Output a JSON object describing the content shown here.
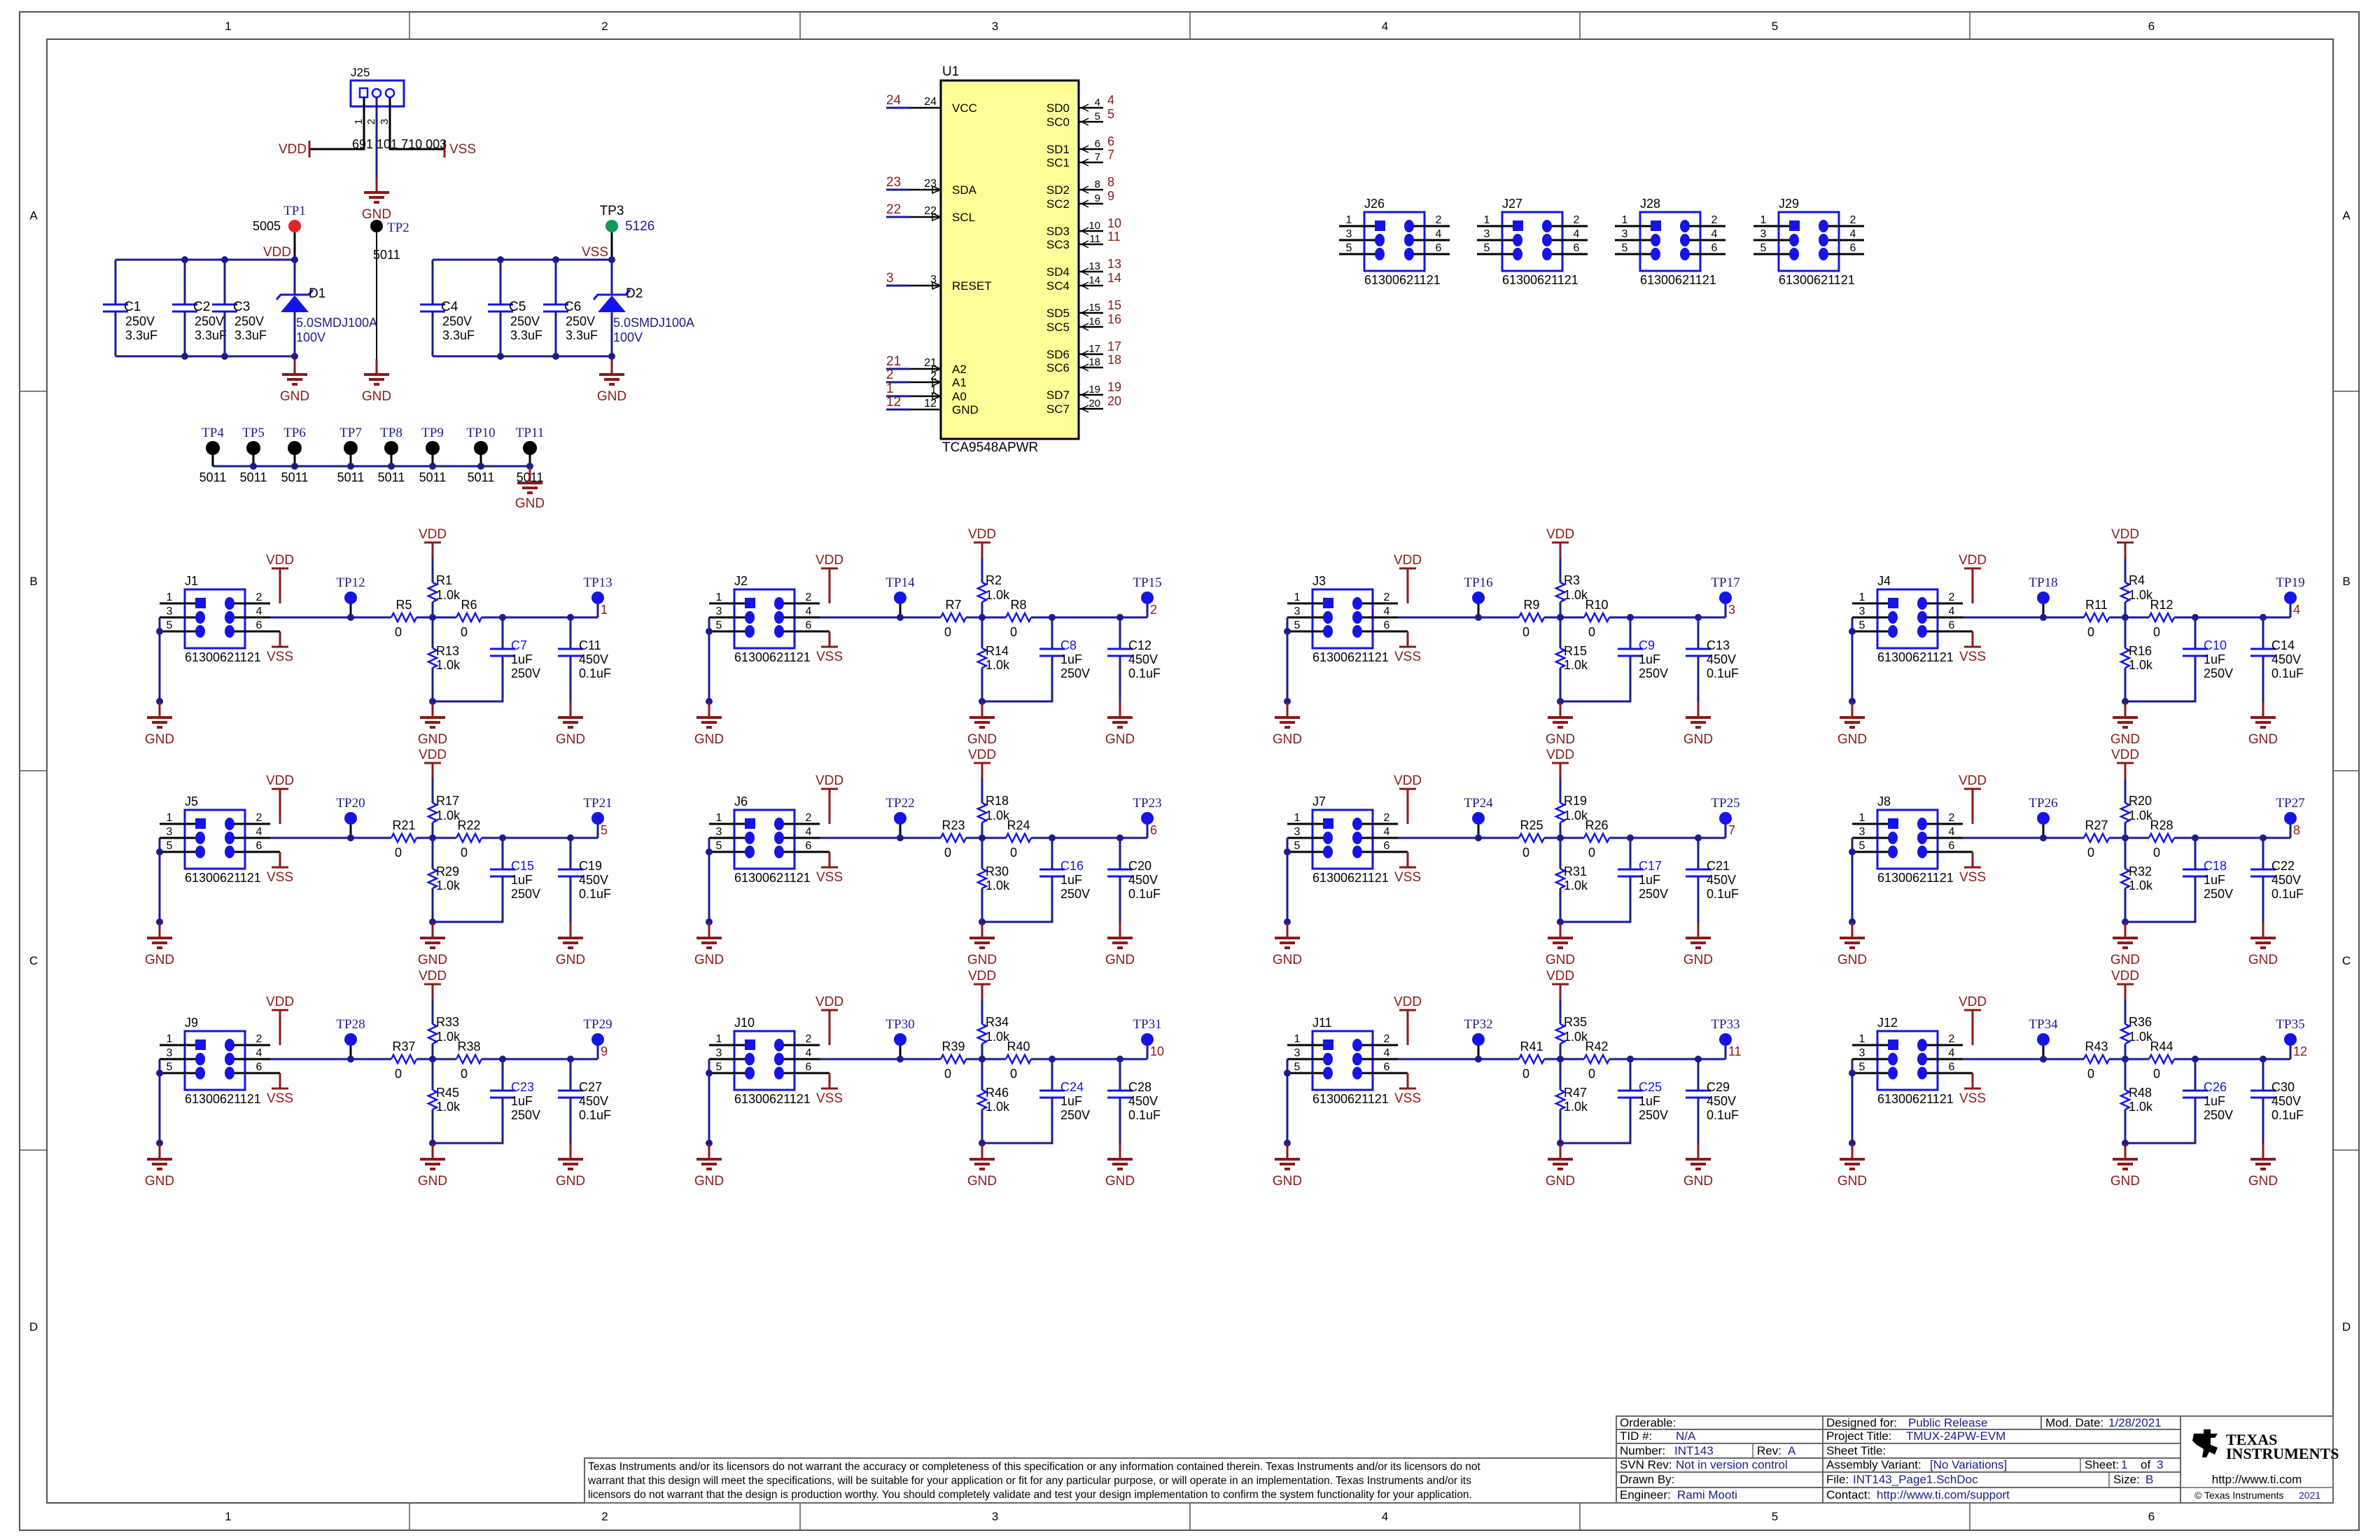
{
  "frame": {
    "columns": [
      "1",
      "2",
      "3",
      "4",
      "5",
      "6"
    ],
    "rows": [
      "A",
      "B",
      "C",
      "D"
    ]
  },
  "colors": {
    "wire": "#1c1c8c",
    "component": "#1414e6",
    "power": "#8b1a1a",
    "ic_fill": "#ffff99",
    "tp_red": "#e8222a",
    "tp_green": "#0f9a5a",
    "tp_black": "#000000"
  },
  "power_section": {
    "j25": {
      "ref": "J25",
      "part": "691 101 710 003",
      "pins": [
        "1",
        "2",
        "3"
      ]
    },
    "vdd": "VDD",
    "vss": "VSS",
    "gnd": "GND",
    "tp1": {
      "ref": "TP1",
      "part": "5005"
    },
    "tp2": {
      "ref": "TP2",
      "part": "5011"
    },
    "tp3": {
      "ref": "TP3",
      "part": "5126"
    },
    "caps": [
      {
        "ref": "C1",
        "voltage": "250V",
        "value": "3.3uF"
      },
      {
        "ref": "C2",
        "voltage": "250V",
        "value": "3.3uF"
      },
      {
        "ref": "C3",
        "voltage": "250V",
        "value": "3.3uF"
      },
      {
        "ref": "C4",
        "voltage": "250V",
        "value": "3.3uF"
      },
      {
        "ref": "C5",
        "voltage": "250V",
        "value": "3.3uF"
      },
      {
        "ref": "C6",
        "voltage": "250V",
        "value": "3.3uF"
      }
    ],
    "d1": {
      "ref": "D1",
      "part": "5.0SMDJ100A",
      "voltage": "100V"
    },
    "d2": {
      "ref": "D2",
      "part": "5.0SMDJ100A",
      "voltage": "100V"
    }
  },
  "gnd_testpoints": {
    "refs": [
      "TP4",
      "TP5",
      "TP6",
      "TP7",
      "TP8",
      "TP9",
      "TP10",
      "TP11"
    ],
    "part": "5011",
    "gnd": "GND"
  },
  "u1": {
    "ref": "U1",
    "part": "TCA9548APWR",
    "left_pins": [
      {
        "name": "VCC",
        "num": "24",
        "net": "24"
      },
      {
        "name": "SDA",
        "num": "23",
        "net": "23"
      },
      {
        "name": "SCL",
        "num": "22",
        "net": "22"
      },
      {
        "name": "RESET",
        "num": "3",
        "net": "3"
      },
      {
        "name": "A2",
        "num": "21",
        "net": "21"
      },
      {
        "name": "A1",
        "num": "2",
        "net": "2"
      },
      {
        "name": "A0",
        "num": "1",
        "net": "1"
      },
      {
        "name": "GND",
        "num": "12",
        "net": "12"
      }
    ],
    "right_pins": [
      {
        "name": "SD0",
        "num": "4",
        "net": "4"
      },
      {
        "name": "SC0",
        "num": "5",
        "net": "5"
      },
      {
        "name": "SD1",
        "num": "6",
        "net": "6"
      },
      {
        "name": "SC1",
        "num": "7",
        "net": "7"
      },
      {
        "name": "SD2",
        "num": "8",
        "net": "8"
      },
      {
        "name": "SC2",
        "num": "9",
        "net": "9"
      },
      {
        "name": "SD3",
        "num": "10",
        "net": "10"
      },
      {
        "name": "SC3",
        "num": "11",
        "net": "11"
      },
      {
        "name": "SD4",
        "num": "13",
        "net": "13"
      },
      {
        "name": "SC4",
        "num": "14",
        "net": "14"
      },
      {
        "name": "SD5",
        "num": "15",
        "net": "15"
      },
      {
        "name": "SC5",
        "num": "16",
        "net": "16"
      },
      {
        "name": "SD6",
        "num": "17",
        "net": "17"
      },
      {
        "name": "SC6",
        "num": "18",
        "net": "18"
      },
      {
        "name": "SD7",
        "num": "19",
        "net": "19"
      },
      {
        "name": "SC7",
        "num": "20",
        "net": "20"
      }
    ]
  },
  "spare_headers": {
    "refs": [
      "J26",
      "J27",
      "J28",
      "J29"
    ],
    "part": "61300621121",
    "pins": [
      "1",
      "2",
      "3",
      "4",
      "5",
      "6"
    ]
  },
  "channel_common": {
    "header_part": "61300621121",
    "header_pins": [
      "1",
      "2",
      "3",
      "4",
      "5",
      "6"
    ],
    "vdd": "VDD",
    "vss": "VSS",
    "gnd": "GND",
    "r_divider_value": "1.0k",
    "r_series_value": "0",
    "c_small_value": "1uF",
    "c_small_voltage": "250V",
    "c_big_voltage": "450V",
    "c_big_value": "0.1uF"
  },
  "channels": [
    {
      "j": "J1",
      "tp_a": "TP12",
      "tp_b": "TP13",
      "r_top": "R1",
      "r_s1": "R5",
      "r_s2": "R6",
      "r_bot": "R13",
      "c_a": "C7",
      "c_b": "C11",
      "net": "1"
    },
    {
      "j": "J2",
      "tp_a": "TP14",
      "tp_b": "TP15",
      "r_top": "R2",
      "r_s1": "R7",
      "r_s2": "R8",
      "r_bot": "R14",
      "c_a": "C8",
      "c_b": "C12",
      "net": "2"
    },
    {
      "j": "J3",
      "tp_a": "TP16",
      "tp_b": "TP17",
      "r_top": "R3",
      "r_s1": "R9",
      "r_s2": "R10",
      "r_bot": "R15",
      "c_a": "C9",
      "c_b": "C13",
      "net": "3"
    },
    {
      "j": "J4",
      "tp_a": "TP18",
      "tp_b": "TP19",
      "r_top": "R4",
      "r_s1": "R11",
      "r_s2": "R12",
      "r_bot": "R16",
      "c_a": "C10",
      "c_b": "C14",
      "net": "4"
    },
    {
      "j": "J5",
      "tp_a": "TP20",
      "tp_b": "TP21",
      "r_top": "R17",
      "r_s1": "R21",
      "r_s2": "R22",
      "r_bot": "R29",
      "c_a": "C15",
      "c_b": "C19",
      "net": "5"
    },
    {
      "j": "J6",
      "tp_a": "TP22",
      "tp_b": "TP23",
      "r_top": "R18",
      "r_s1": "R23",
      "r_s2": "R24",
      "r_bot": "R30",
      "c_a": "C16",
      "c_b": "C20",
      "net": "6"
    },
    {
      "j": "J7",
      "tp_a": "TP24",
      "tp_b": "TP25",
      "r_top": "R19",
      "r_s1": "R25",
      "r_s2": "R26",
      "r_bot": "R31",
      "c_a": "C17",
      "c_b": "C21",
      "net": "7"
    },
    {
      "j": "J8",
      "tp_a": "TP26",
      "tp_b": "TP27",
      "r_top": "R20",
      "r_s1": "R27",
      "r_s2": "R28",
      "r_bot": "R32",
      "c_a": "C18",
      "c_b": "C22",
      "net": "8"
    },
    {
      "j": "J9",
      "tp_a": "TP28",
      "tp_b": "TP29",
      "r_top": "R33",
      "r_s1": "R37",
      "r_s2": "R38",
      "r_bot": "R45",
      "c_a": "C23",
      "c_b": "C27",
      "net": "9"
    },
    {
      "j": "J10",
      "tp_a": "TP30",
      "tp_b": "TP31",
      "r_top": "R34",
      "r_s1": "R39",
      "r_s2": "R40",
      "r_bot": "R46",
      "c_a": "C24",
      "c_b": "C28",
      "net": "10"
    },
    {
      "j": "J11",
      "tp_a": "TP32",
      "tp_b": "TP33",
      "r_top": "R35",
      "r_s1": "R41",
      "r_s2": "R42",
      "r_bot": "R47",
      "c_a": "C25",
      "c_b": "C29",
      "net": "11"
    },
    {
      "j": "J12",
      "tp_a": "TP34",
      "tp_b": "TP35",
      "r_top": "R36",
      "r_s1": "R43",
      "r_s2": "R44",
      "r_bot": "R48",
      "c_a": "C26",
      "c_b": "C30",
      "net": "12"
    }
  ],
  "title_block": {
    "orderable_label": "Orderable:",
    "tid_label": "TID #:",
    "tid": "N/A",
    "number_label": "Number:",
    "number": "INT143",
    "rev_label": "Rev:",
    "rev": "A",
    "svn_label": "SVN Rev:",
    "svn": "Not in version control",
    "drawn_label": "Drawn By:",
    "engineer_label": "Engineer:",
    "engineer": "Rami Mooti",
    "designed_label": "Designed for:",
    "designed": "Public Release",
    "mod_date_label": "Mod. Date:",
    "mod_date": "1/28/2021",
    "project_label": "Project Title:",
    "project": "TMUX-24PW-EVM",
    "sheet_title_label": "Sheet Title:",
    "variant_label": "Assembly Variant:",
    "variant": "[No Variations]",
    "sheet_label": "Sheet:",
    "sheet": "1",
    "sheet_of": "of",
    "sheet_total": "3",
    "file_label": "File:",
    "file": "INT143_Page1.SchDoc",
    "size_label": "Size:",
    "size": "B",
    "contact_label": "Contact:",
    "contact": "http://www.ti.com/support",
    "logo_line1": "Texas",
    "logo_line2": "Instruments",
    "website": "http://www.ti.com",
    "copyright": "© Texas Instruments",
    "copyright_year": "2021"
  },
  "disclaimer": [
    "Texas Instruments and/or its licensors do not warrant the accuracy or completeness of this specification or any information contained therein. Texas Instruments and/or its licensors do not",
    "warrant that this design will meet the specifications, will be suitable for your application or fit for any particular purpose, or will operate in an implementation. Texas Instruments and/or its",
    "licensors do not warrant that the design is production worthy. You should completely validate and test your design implementation to confirm the system functionality for your application."
  ]
}
